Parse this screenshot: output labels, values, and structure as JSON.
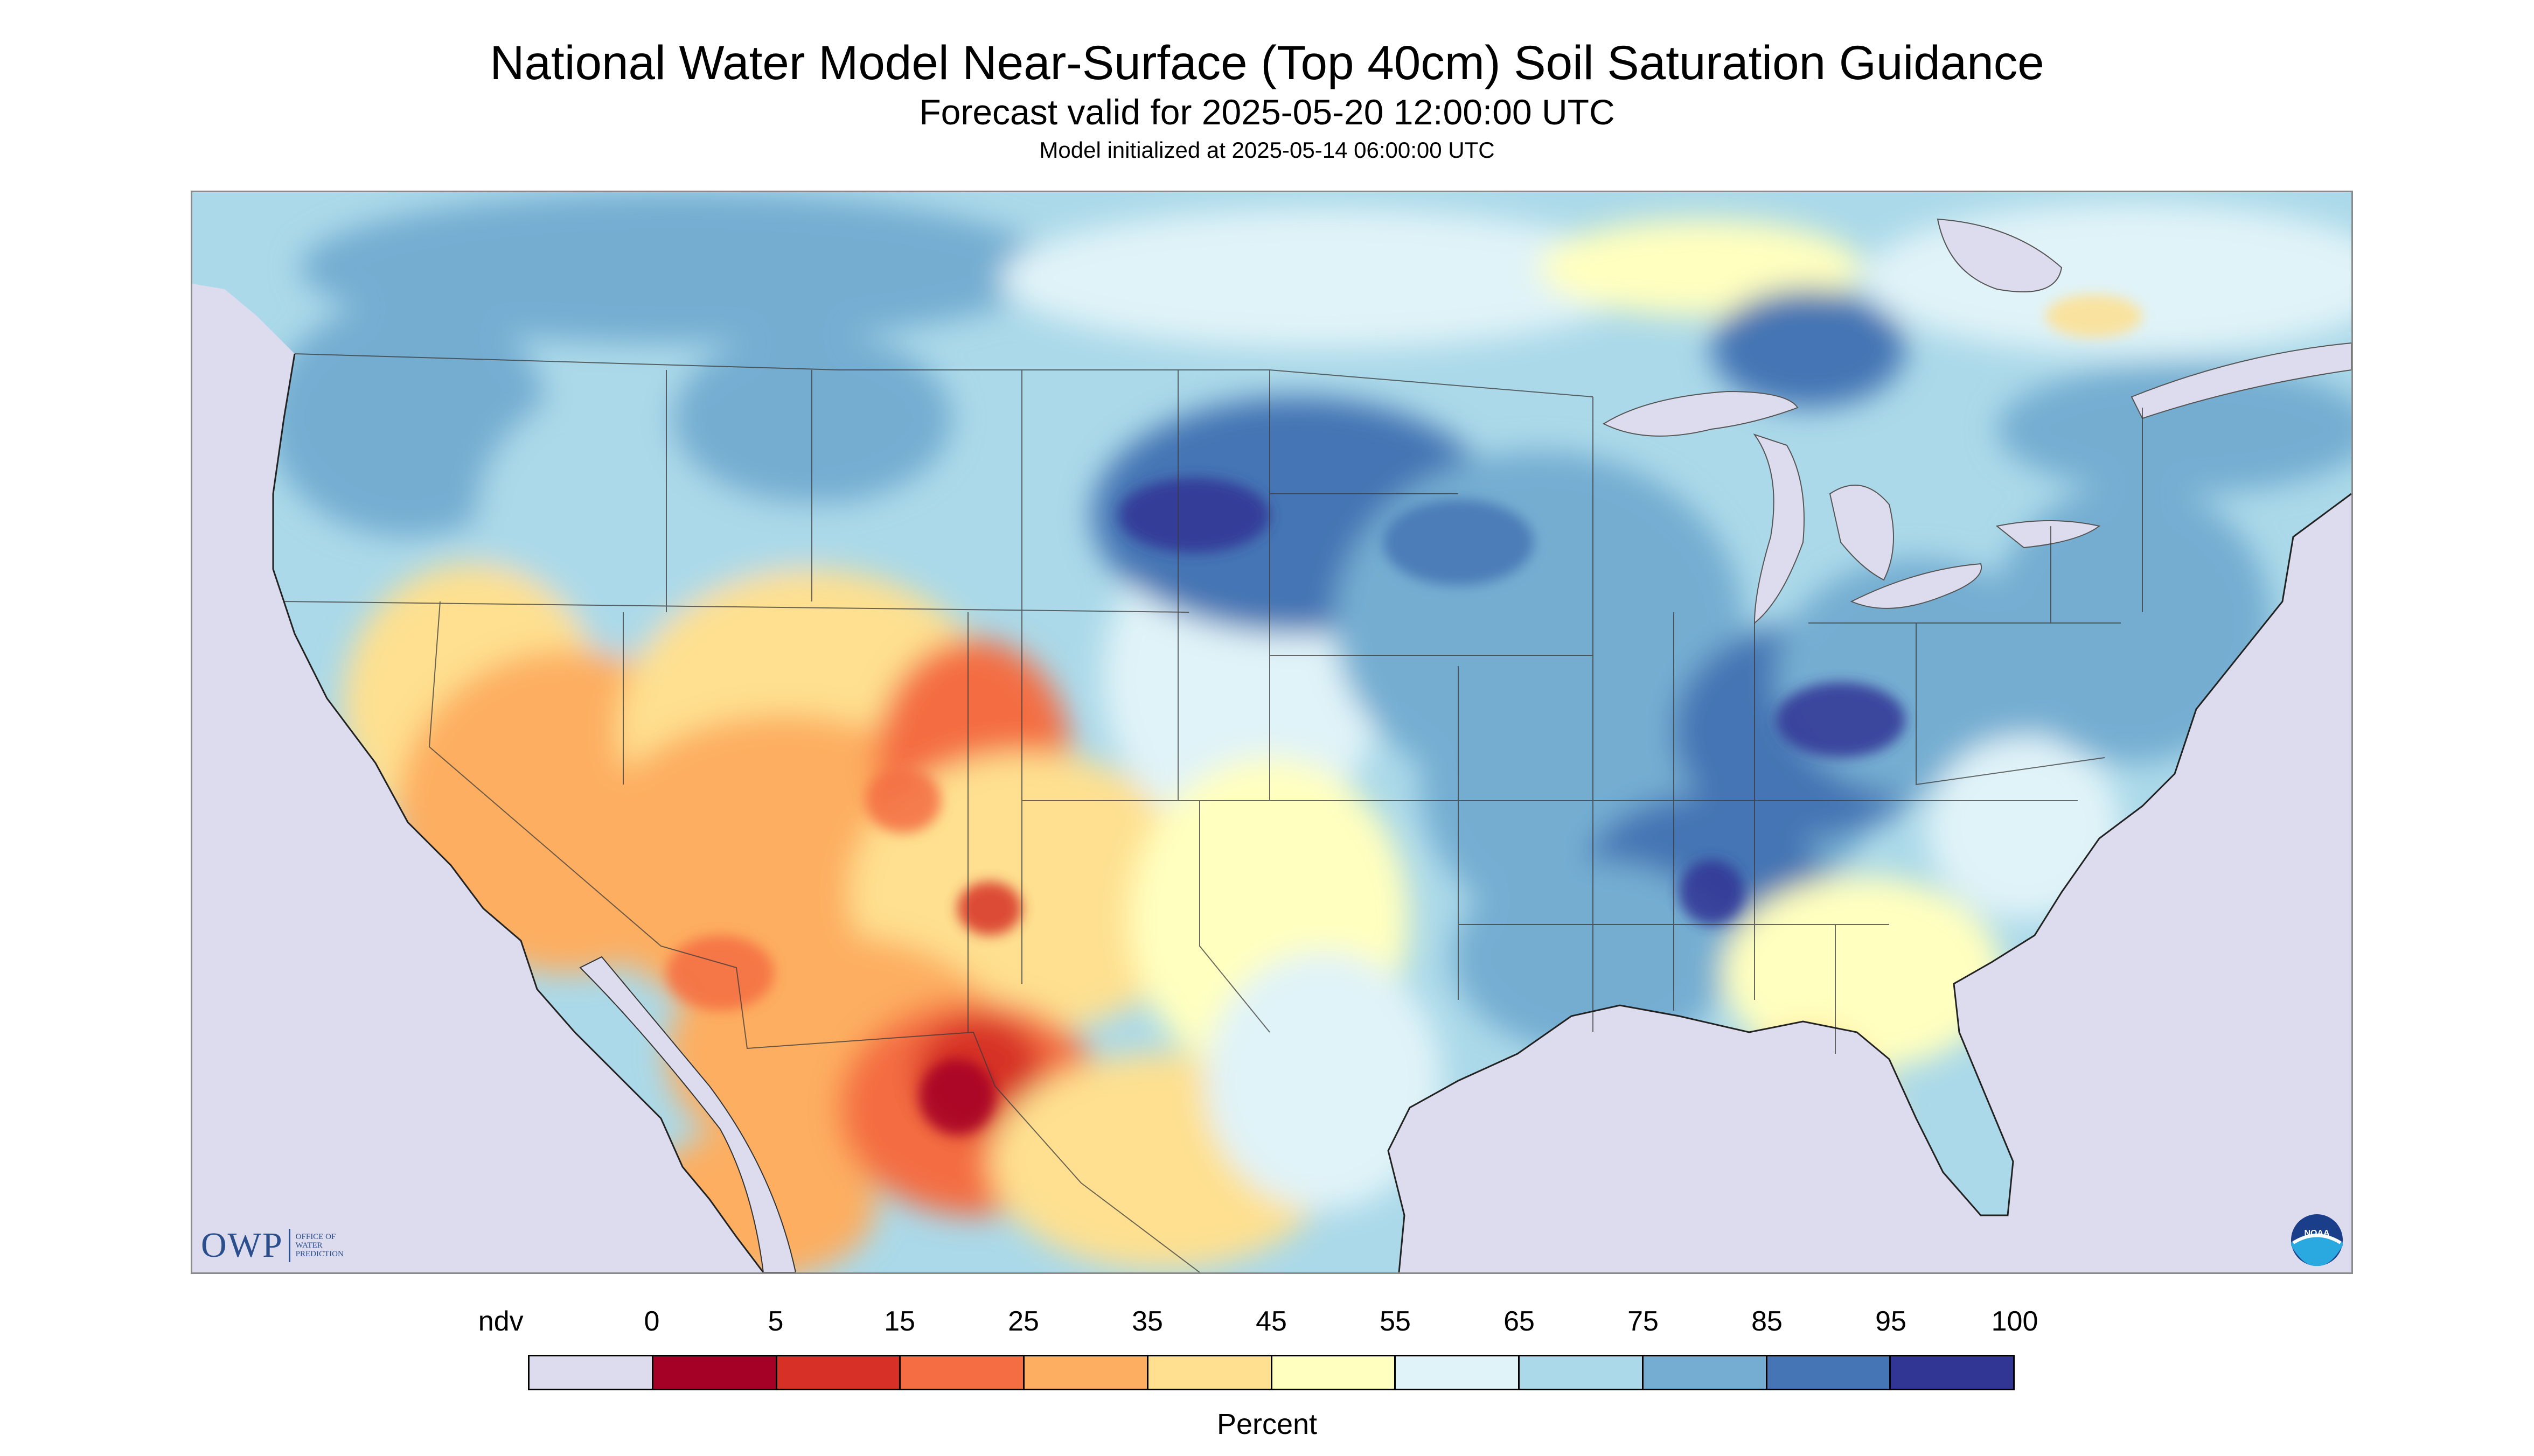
{
  "header": {
    "title": "National Water Model Near-Surface (Top 40cm) Soil Saturation Guidance",
    "forecast_valid": "Forecast valid for 2025-05-20 12:00:00 UTC",
    "model_initialized": "Model initialized at 2025-05-14 06:00:00 UTC"
  },
  "logos": {
    "owp_mark": "OWP",
    "owp_text_lines": [
      "OFFICE OF",
      "WATER",
      "PREDICTION"
    ],
    "noaa_mark": "NOAA"
  },
  "legend": {
    "labels": [
      "ndv",
      "0",
      "5",
      "15",
      "25",
      "35",
      "45",
      "55",
      "65",
      "75",
      "85",
      "95",
      "100"
    ],
    "colors": [
      "#dcdcee",
      "#a50026",
      "#d73027",
      "#f46d43",
      "#fdae61",
      "#fee090",
      "#ffffbf",
      "#e0f3f8",
      "#abd9e9",
      "#74add1",
      "#4575b4",
      "#313695"
    ],
    "units": "Percent"
  },
  "map": {
    "background_color": "#dcdcee",
    "land_base_color": "#abd9e9",
    "water_color": "#dcdcee"
  }
}
